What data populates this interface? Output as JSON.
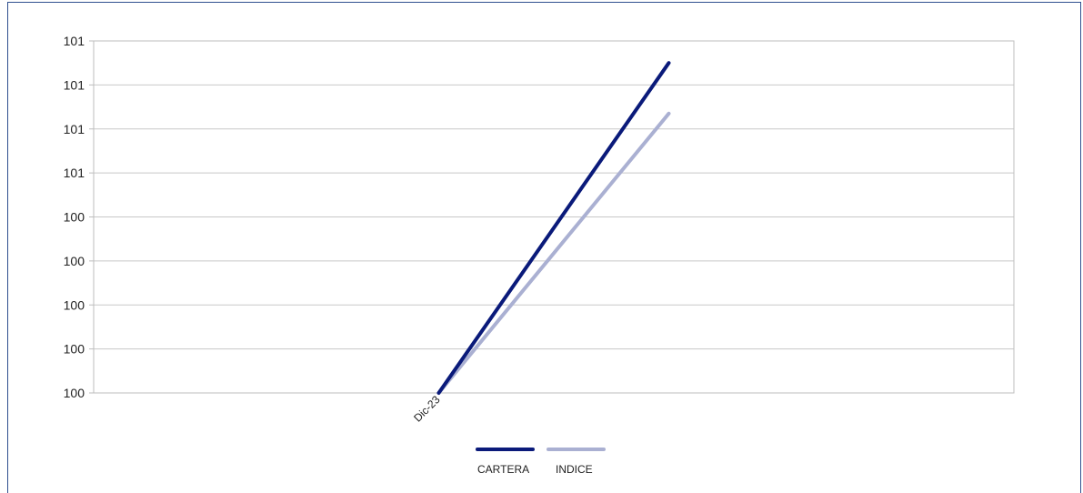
{
  "chart_data": {
    "type": "line",
    "x": [
      "",
      "Dic-23",
      "",
      ""
    ],
    "y_tick_labels": [
      "101",
      "101",
      "101",
      "101",
      "100",
      "100",
      "100",
      "100",
      "100"
    ],
    "ylim": [
      99.6,
      101.2
    ],
    "grid": true,
    "legend_placement": "bottom-center",
    "series": [
      {
        "name": "CARTERA",
        "color": "#0a1a7a",
        "values": [
          null,
          99.6,
          101.1,
          null
        ]
      },
      {
        "name": "INDICE",
        "color": "#aab0d2",
        "values": [
          null,
          99.6,
          100.87,
          null
        ]
      }
    ]
  }
}
